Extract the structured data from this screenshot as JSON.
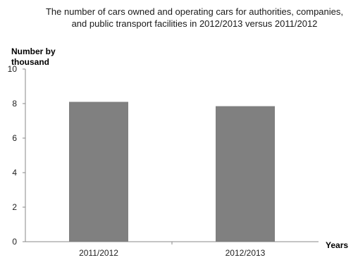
{
  "chart_data": {
    "type": "bar",
    "title": "The number of cars owned and operating cars  for authorities, companies, and public transport facilities in 2012/2013 versus 2011/2012",
    "ylabel": "Number by thousand",
    "xlabel": "Years",
    "categories": [
      "2011/2012",
      "2012/2013"
    ],
    "values": [
      8.1,
      7.85
    ],
    "ylim": [
      0,
      10
    ],
    "yticks": [
      "0",
      "2",
      "4",
      "6",
      "8",
      "10"
    ],
    "grid": false,
    "legend": "none",
    "bar_color": "#808080"
  }
}
